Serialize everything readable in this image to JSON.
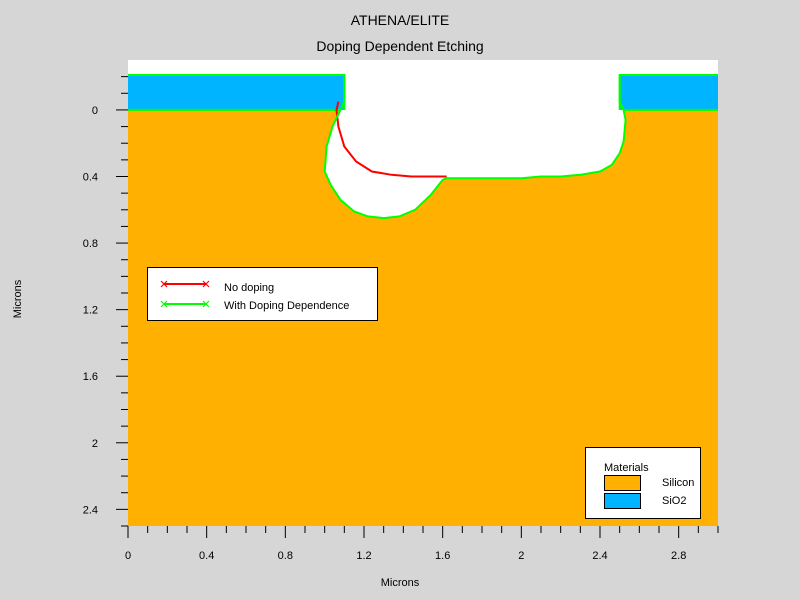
{
  "title": "ATHENA/ELITE",
  "subtitle": "Doping Dependent Etching",
  "chart_data": {
    "type": "area",
    "title": "ATHENA/ELITE",
    "subtitle": "Doping Dependent Etching",
    "xlabel": "Microns",
    "ylabel": "Microns",
    "xlim": [
      0,
      3.0
    ],
    "ylim": [
      2.5,
      -0.3
    ],
    "y_axis_inverted": true,
    "xticks": [
      0,
      0.4,
      0.8,
      1.2,
      1.6,
      2,
      2.4,
      2.8
    ],
    "yticks": [
      0,
      0.4,
      0.8,
      1.2,
      1.6,
      2,
      2.4
    ],
    "grid": false,
    "materials": [
      {
        "name": "Silicon",
        "color": "#ffb000"
      },
      {
        "name": "SiO2",
        "color": "#00b4ff"
      }
    ],
    "oxide_layer": {
      "top": -0.21,
      "bottom": 0.0,
      "left_end": 1.1,
      "right_start": 2.5
    },
    "series": [
      {
        "name": "No doping",
        "color": "#ff0000",
        "marker": "x",
        "x": [
          1.07,
          1.06,
          1.07,
          1.1,
          1.16,
          1.24,
          1.34,
          1.44,
          1.55,
          1.62
        ],
        "y": [
          -0.05,
          0.0,
          0.1,
          0.22,
          0.31,
          0.37,
          0.39,
          0.4,
          0.4,
          0.4
        ]
      },
      {
        "name": "With Doping Dependence",
        "color": "#00ff00",
        "marker": "x",
        "x": [
          1.1,
          1.1,
          1.08,
          1.04,
          1.01,
          1.0,
          1.03,
          1.08,
          1.15,
          1.22,
          1.3,
          1.38,
          1.46,
          1.54,
          1.6,
          1.62,
          1.7,
          1.8,
          1.9,
          2.0,
          2.1,
          2.2,
          2.3,
          2.4,
          2.46,
          2.5,
          2.52,
          2.53,
          2.52,
          2.5,
          2.5
        ],
        "y": [
          -0.21,
          -0.05,
          0.0,
          0.1,
          0.22,
          0.37,
          0.45,
          0.54,
          0.61,
          0.64,
          0.65,
          0.64,
          0.6,
          0.51,
          0.42,
          0.41,
          0.41,
          0.41,
          0.41,
          0.41,
          0.4,
          0.4,
          0.39,
          0.37,
          0.33,
          0.26,
          0.19,
          0.06,
          0.0,
          -0.05,
          -0.21
        ]
      }
    ],
    "legend_position": "middle-left"
  },
  "legend_lines": {
    "items": [
      {
        "label": "No doping",
        "color": "#ff0000"
      },
      {
        "label": "With Doping Dependence",
        "color": "#00ff00"
      }
    ]
  },
  "legend_materials": {
    "title": "Materials",
    "items": [
      {
        "label": "Silicon",
        "color": "#ffb000"
      },
      {
        "label": "SiO2",
        "color": "#00b4ff"
      }
    ]
  }
}
